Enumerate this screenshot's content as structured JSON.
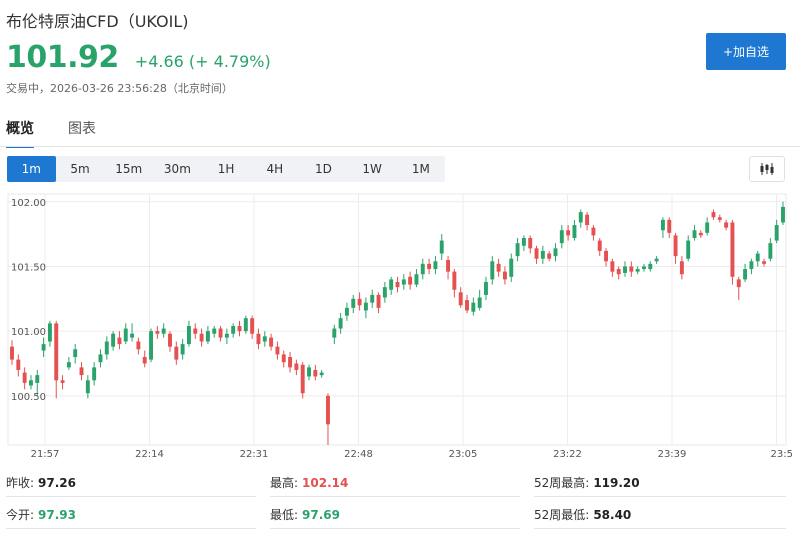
{
  "header": {
    "title": "布伦特原油CFD（UKOIL)",
    "price": "101.92",
    "change": "+4.66 (+ 4.79%)",
    "status": "交易中，2026-03-26 23:56:28（北京时间）",
    "add_watchlist": "+加自选"
  },
  "tabs": [
    {
      "label": "概览",
      "active": true
    },
    {
      "label": "图表",
      "active": false
    }
  ],
  "intervals": [
    {
      "label": "1m",
      "active": true
    },
    {
      "label": "5m",
      "active": false
    },
    {
      "label": "15m",
      "active": false
    },
    {
      "label": "30m",
      "active": false
    },
    {
      "label": "1H",
      "active": false
    },
    {
      "label": "4H",
      "active": false
    },
    {
      "label": "1D",
      "active": false
    },
    {
      "label": "1W",
      "active": false
    },
    {
      "label": "1M",
      "active": false
    }
  ],
  "chart_type_icon": "candlestick-icon",
  "colors": {
    "up": "#2aa36b",
    "down": "#e55050",
    "accent": "#1e78d2"
  },
  "chart_data": {
    "type": "candlestick",
    "y_ticks": [
      "102.00",
      "101.50",
      "101.00",
      "100.50"
    ],
    "y_tick_values": [
      102.0,
      101.5,
      101.0,
      100.5
    ],
    "ylim": [
      100.12,
      102.06
    ],
    "x_ticks": [
      "21:57",
      "22:14",
      "22:31",
      "22:48",
      "23:05",
      "23:22",
      "23:39",
      "23:5"
    ],
    "grid": true,
    "candles": [
      [
        100.88,
        100.78,
        100.93,
        100.74
      ],
      [
        100.78,
        100.7,
        100.82,
        100.65
      ],
      [
        100.68,
        100.6,
        100.72,
        100.55
      ],
      [
        100.58,
        100.62,
        100.66,
        100.55
      ],
      [
        100.6,
        100.66,
        100.7,
        100.5
      ],
      [
        100.85,
        100.9,
        100.95,
        100.8
      ],
      [
        100.92,
        101.06,
        101.08,
        100.88
      ],
      [
        101.06,
        100.62,
        101.08,
        100.48
      ],
      [
        100.62,
        100.6,
        100.66,
        100.55
      ],
      [
        100.72,
        100.76,
        100.8,
        100.7
      ],
      [
        100.8,
        100.86,
        100.9,
        100.75
      ],
      [
        100.72,
        100.66,
        100.76,
        100.62
      ],
      [
        100.52,
        100.62,
        100.66,
        100.48
      ],
      [
        100.62,
        100.72,
        100.76,
        100.58
      ],
      [
        100.76,
        100.82,
        100.86,
        100.72
      ],
      [
        100.82,
        100.92,
        100.96,
        100.78
      ],
      [
        100.88,
        100.98,
        101.0,
        100.85
      ],
      [
        100.95,
        100.9,
        101.0,
        100.86
      ],
      [
        100.92,
        101.02,
        101.06,
        100.9
      ],
      [
        100.95,
        100.98,
        101.06,
        100.92
      ],
      [
        100.92,
        100.86,
        100.95,
        100.82
      ],
      [
        100.8,
        100.75,
        100.85,
        100.72
      ],
      [
        100.78,
        101.0,
        101.02,
        100.76
      ],
      [
        101.0,
        100.98,
        101.04,
        100.94
      ],
      [
        100.98,
        101.02,
        101.06,
        100.95
      ],
      [
        100.98,
        100.88,
        101.0,
        100.84
      ],
      [
        100.88,
        100.78,
        100.92,
        100.74
      ],
      [
        100.82,
        100.9,
        100.94,
        100.78
      ],
      [
        100.9,
        101.04,
        101.08,
        100.88
      ],
      [
        101.02,
        100.98,
        101.06,
        100.94
      ],
      [
        100.98,
        100.92,
        101.02,
        100.88
      ],
      [
        100.92,
        101.0,
        101.04,
        100.9
      ],
      [
        100.98,
        101.02,
        101.04,
        100.95
      ],
      [
        101.02,
        100.95,
        101.04,
        100.92
      ],
      [
        100.95,
        100.98,
        101.02,
        100.9
      ],
      [
        100.98,
        101.04,
        101.06,
        100.95
      ],
      [
        101.04,
        101.0,
        101.08,
        100.96
      ],
      [
        101.0,
        101.1,
        101.12,
        100.98
      ],
      [
        101.1,
        100.98,
        101.12,
        100.94
      ],
      [
        100.98,
        100.9,
        101.02,
        100.86
      ],
      [
        100.92,
        100.96,
        101.0,
        100.88
      ],
      [
        100.95,
        100.88,
        100.98,
        100.85
      ],
      [
        100.88,
        100.82,
        100.92,
        100.78
      ],
      [
        100.82,
        100.76,
        100.85,
        100.72
      ],
      [
        100.8,
        100.72,
        100.84,
        100.68
      ],
      [
        100.75,
        100.7,
        100.78,
        100.66
      ],
      [
        100.74,
        100.52,
        100.76,
        100.48
      ],
      [
        100.65,
        100.72,
        100.74,
        100.62
      ],
      [
        100.7,
        100.65,
        100.74,
        100.62
      ],
      [
        100.66,
        100.68,
        100.7,
        100.64
      ],
      [
        100.5,
        100.28,
        100.52,
        100.12
      ],
      [
        100.95,
        101.02,
        101.05,
        100.9
      ],
      [
        101.02,
        101.1,
        101.14,
        100.98
      ],
      [
        101.12,
        101.18,
        101.22,
        101.08
      ],
      [
        101.18,
        101.25,
        101.28,
        101.14
      ],
      [
        101.25,
        101.2,
        101.3,
        101.16
      ],
      [
        101.16,
        101.22,
        101.26,
        101.1
      ],
      [
        101.22,
        101.28,
        101.32,
        101.18
      ],
      [
        101.28,
        101.18,
        101.3,
        101.14
      ],
      [
        101.26,
        101.34,
        101.38,
        101.22
      ],
      [
        101.32,
        101.4,
        101.42,
        101.28
      ],
      [
        101.38,
        101.34,
        101.42,
        101.3
      ],
      [
        101.36,
        101.4,
        101.44,
        101.32
      ],
      [
        101.42,
        101.36,
        101.46,
        101.32
      ],
      [
        101.36,
        101.44,
        101.48,
        101.34
      ],
      [
        101.44,
        101.52,
        101.56,
        101.4
      ],
      [
        101.52,
        101.48,
        101.56,
        101.44
      ],
      [
        101.48,
        101.54,
        101.58,
        101.44
      ],
      [
        101.6,
        101.7,
        101.75,
        101.55
      ],
      [
        101.55,
        101.46,
        101.58,
        101.4
      ],
      [
        101.46,
        101.32,
        101.48,
        101.26
      ],
      [
        101.3,
        101.2,
        101.34,
        101.18
      ],
      [
        101.24,
        101.16,
        101.28,
        101.14
      ],
      [
        101.15,
        101.22,
        101.26,
        101.12
      ],
      [
        101.18,
        101.26,
        101.32,
        101.16
      ],
      [
        101.28,
        101.38,
        101.42,
        101.24
      ],
      [
        101.4,
        101.54,
        101.58,
        101.36
      ],
      [
        101.52,
        101.46,
        101.56,
        101.42
      ],
      [
        101.46,
        101.4,
        101.5,
        101.36
      ],
      [
        101.42,
        101.56,
        101.6,
        101.38
      ],
      [
        101.58,
        101.68,
        101.72,
        101.54
      ],
      [
        101.66,
        101.72,
        101.74,
        101.62
      ],
      [
        101.72,
        101.64,
        101.74,
        101.6
      ],
      [
        101.64,
        101.56,
        101.66,
        101.52
      ],
      [
        101.56,
        101.62,
        101.66,
        101.52
      ],
      [
        101.6,
        101.56,
        101.62,
        101.54
      ],
      [
        101.58,
        101.64,
        101.68,
        101.54
      ],
      [
        101.68,
        101.78,
        101.82,
        101.64
      ],
      [
        101.78,
        101.74,
        101.82,
        101.7
      ],
      [
        101.72,
        101.82,
        101.86,
        101.7
      ],
      [
        101.84,
        101.92,
        101.94,
        101.8
      ],
      [
        101.9,
        101.82,
        101.92,
        101.78
      ],
      [
        101.8,
        101.74,
        101.82,
        101.7
      ],
      [
        101.7,
        101.62,
        101.72,
        101.58
      ],
      [
        101.62,
        101.54,
        101.64,
        101.5
      ],
      [
        101.54,
        101.46,
        101.56,
        101.42
      ],
      [
        101.48,
        101.44,
        101.5,
        101.4
      ],
      [
        101.45,
        101.5,
        101.54,
        101.42
      ],
      [
        101.5,
        101.46,
        101.54,
        101.42
      ],
      [
        101.46,
        101.48,
        101.5,
        101.44
      ],
      [
        101.48,
        101.5,
        101.52,
        101.46
      ],
      [
        101.48,
        101.52,
        101.54,
        101.46
      ],
      [
        101.54,
        101.56,
        101.58,
        101.52
      ],
      [
        101.78,
        101.86,
        101.88,
        101.72
      ],
      [
        101.86,
        101.76,
        101.88,
        101.72
      ],
      [
        101.74,
        101.58,
        101.76,
        101.52
      ],
      [
        101.54,
        101.44,
        101.58,
        101.4
      ],
      [
        101.56,
        101.7,
        101.74,
        101.54
      ],
      [
        101.72,
        101.78,
        101.82,
        101.7
      ],
      [
        101.76,
        101.74,
        101.78,
        101.72
      ],
      [
        101.76,
        101.84,
        101.88,
        101.74
      ],
      [
        101.92,
        101.88,
        101.94,
        101.86
      ],
      [
        101.88,
        101.86,
        101.9,
        101.84
      ],
      [
        101.84,
        101.8,
        101.86,
        101.78
      ],
      [
        101.84,
        101.42,
        101.86,
        101.36
      ],
      [
        101.4,
        101.34,
        101.42,
        101.24
      ],
      [
        101.4,
        101.48,
        101.52,
        101.38
      ],
      [
        101.48,
        101.54,
        101.56,
        101.44
      ],
      [
        101.54,
        101.6,
        101.62,
        101.5
      ],
      [
        101.54,
        101.52,
        101.56,
        101.5
      ],
      [
        101.56,
        101.68,
        101.72,
        101.54
      ],
      [
        101.7,
        101.82,
        101.86,
        101.68
      ],
      [
        101.84,
        101.96,
        102.0,
        101.82
      ]
    ]
  },
  "stats": [
    {
      "label": "昨收:",
      "value": "97.26",
      "tone": "dark"
    },
    {
      "label": "最高:",
      "value": "102.14",
      "tone": "down"
    },
    {
      "label": "52周最高:",
      "value": "119.20",
      "tone": "dark"
    },
    {
      "label": "今开:",
      "value": "97.93",
      "tone": "up"
    },
    {
      "label": "最低:",
      "value": "97.69",
      "tone": "up"
    },
    {
      "label": "52周最低:",
      "value": "58.40",
      "tone": "dark"
    }
  ]
}
